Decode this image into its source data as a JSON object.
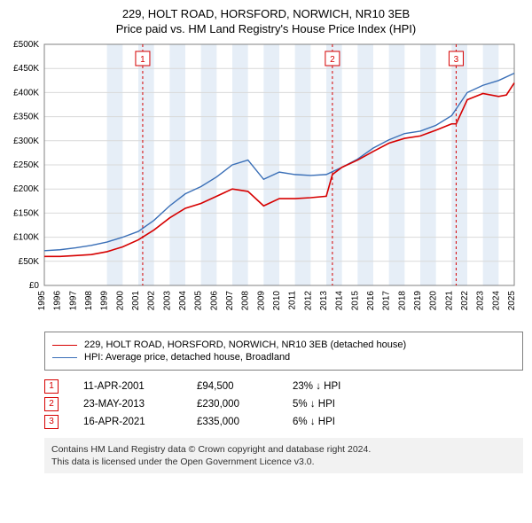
{
  "title_line1": "229, HOLT ROAD, HORSFORD, NORWICH, NR10 3EB",
  "title_line2": "Price paid vs. HM Land Registry's House Price Index (HPI)",
  "chart": {
    "type": "line",
    "background_color": "#ffffff",
    "plot_border_color": "#808080",
    "grid_color": "#d9d9d9",
    "band_color": "#e6eef7",
    "ylim": [
      0,
      500000
    ],
    "ytick_step": 50000,
    "yticks": [
      "£0",
      "£50K",
      "£100K",
      "£150K",
      "£200K",
      "£250K",
      "£300K",
      "£350K",
      "£400K",
      "£450K",
      "£500K"
    ],
    "xlim_years": [
      1995,
      2025
    ],
    "shaded_year_ranges": [
      [
        1999,
        2000
      ],
      [
        2001,
        2002
      ],
      [
        2003,
        2004
      ],
      [
        2005,
        2006
      ],
      [
        2007,
        2008
      ],
      [
        2009,
        2010
      ],
      [
        2011,
        2012
      ],
      [
        2013,
        2014
      ],
      [
        2015,
        2016
      ],
      [
        2017,
        2018
      ],
      [
        2019,
        2020
      ],
      [
        2021,
        2022
      ],
      [
        2023,
        2024
      ]
    ],
    "xticks": [
      "1995",
      "1996",
      "1997",
      "1998",
      "1999",
      "2000",
      "2001",
      "2002",
      "2003",
      "2004",
      "2005",
      "2006",
      "2007",
      "2008",
      "2009",
      "2010",
      "2011",
      "2012",
      "2013",
      "2014",
      "2015",
      "2016",
      "2017",
      "2018",
      "2019",
      "2020",
      "2021",
      "2022",
      "2023",
      "2024",
      "2025"
    ],
    "series": {
      "price_paid": {
        "color": "#d60000",
        "width": 1.6,
        "points": [
          [
            1995,
            60000
          ],
          [
            1996,
            60000
          ],
          [
            1997,
            62000
          ],
          [
            1998,
            64000
          ],
          [
            1999,
            70000
          ],
          [
            2000,
            80000
          ],
          [
            2001,
            94500
          ],
          [
            2002,
            115000
          ],
          [
            2003,
            140000
          ],
          [
            2004,
            160000
          ],
          [
            2005,
            170000
          ],
          [
            2006,
            185000
          ],
          [
            2007,
            200000
          ],
          [
            2008,
            195000
          ],
          [
            2009,
            165000
          ],
          [
            2010,
            180000
          ],
          [
            2011,
            180000
          ],
          [
            2012,
            182000
          ],
          [
            2013,
            185000
          ],
          [
            2013.39,
            230000
          ],
          [
            2014,
            245000
          ],
          [
            2015,
            260000
          ],
          [
            2016,
            278000
          ],
          [
            2017,
            295000
          ],
          [
            2018,
            305000
          ],
          [
            2019,
            310000
          ],
          [
            2020,
            322000
          ],
          [
            2021,
            335000
          ],
          [
            2021.29,
            335000
          ],
          [
            2022,
            385000
          ],
          [
            2023,
            398000
          ],
          [
            2024,
            392000
          ],
          [
            2024.5,
            395000
          ],
          [
            2025,
            420000
          ]
        ]
      },
      "hpi": {
        "color": "#3a6fb7",
        "width": 1.4,
        "points": [
          [
            1995,
            72000
          ],
          [
            1996,
            74000
          ],
          [
            1997,
            78000
          ],
          [
            1998,
            83000
          ],
          [
            1999,
            90000
          ],
          [
            2000,
            100000
          ],
          [
            2001,
            112000
          ],
          [
            2002,
            135000
          ],
          [
            2003,
            165000
          ],
          [
            2004,
            190000
          ],
          [
            2005,
            205000
          ],
          [
            2006,
            225000
          ],
          [
            2007,
            250000
          ],
          [
            2008,
            260000
          ],
          [
            2009,
            220000
          ],
          [
            2010,
            235000
          ],
          [
            2011,
            230000
          ],
          [
            2012,
            228000
          ],
          [
            2013,
            230000
          ],
          [
            2014,
            245000
          ],
          [
            2015,
            262000
          ],
          [
            2016,
            285000
          ],
          [
            2017,
            302000
          ],
          [
            2018,
            315000
          ],
          [
            2019,
            320000
          ],
          [
            2020,
            332000
          ],
          [
            2021,
            352000
          ],
          [
            2022,
            400000
          ],
          [
            2023,
            415000
          ],
          [
            2024,
            425000
          ],
          [
            2025,
            440000
          ]
        ]
      }
    },
    "sale_vlines": {
      "color": "#d60000",
      "dash": "3,3",
      "years": [
        2001.28,
        2013.39,
        2021.29
      ]
    },
    "sale_markers": [
      {
        "num": "1",
        "year": 2001.28,
        "box_y": 45000,
        "border": "#d60000",
        "text": "#d60000"
      },
      {
        "num": "2",
        "year": 2013.39,
        "box_y": 45000,
        "border": "#d60000",
        "text": "#d60000"
      },
      {
        "num": "3",
        "year": 2021.29,
        "box_y": 47000,
        "border": "#d60000",
        "text": "#d60000"
      }
    ],
    "label_fontsize": 10
  },
  "legend": {
    "series1_label": "229, HOLT ROAD, HORSFORD, NORWICH, NR10 3EB (detached house)",
    "series1_color": "#d60000",
    "series2_label": "HPI: Average price, detached house, Broadland",
    "series2_color": "#3a6fb7"
  },
  "sales": [
    {
      "num": "1",
      "date": "11-APR-2001",
      "price": "£94,500",
      "diff": "23% ↓ HPI"
    },
    {
      "num": "2",
      "date": "23-MAY-2013",
      "price": "£230,000",
      "diff": "5% ↓ HPI"
    },
    {
      "num": "3",
      "date": "16-APR-2021",
      "price": "£335,000",
      "diff": "6% ↓ HPI"
    }
  ],
  "sale_marker_border": "#d60000",
  "sale_marker_text": "#d60000",
  "credit_line1": "Contains HM Land Registry data © Crown copyright and database right 2024.",
  "credit_line2": "This data is licensed under the Open Government Licence v3.0."
}
